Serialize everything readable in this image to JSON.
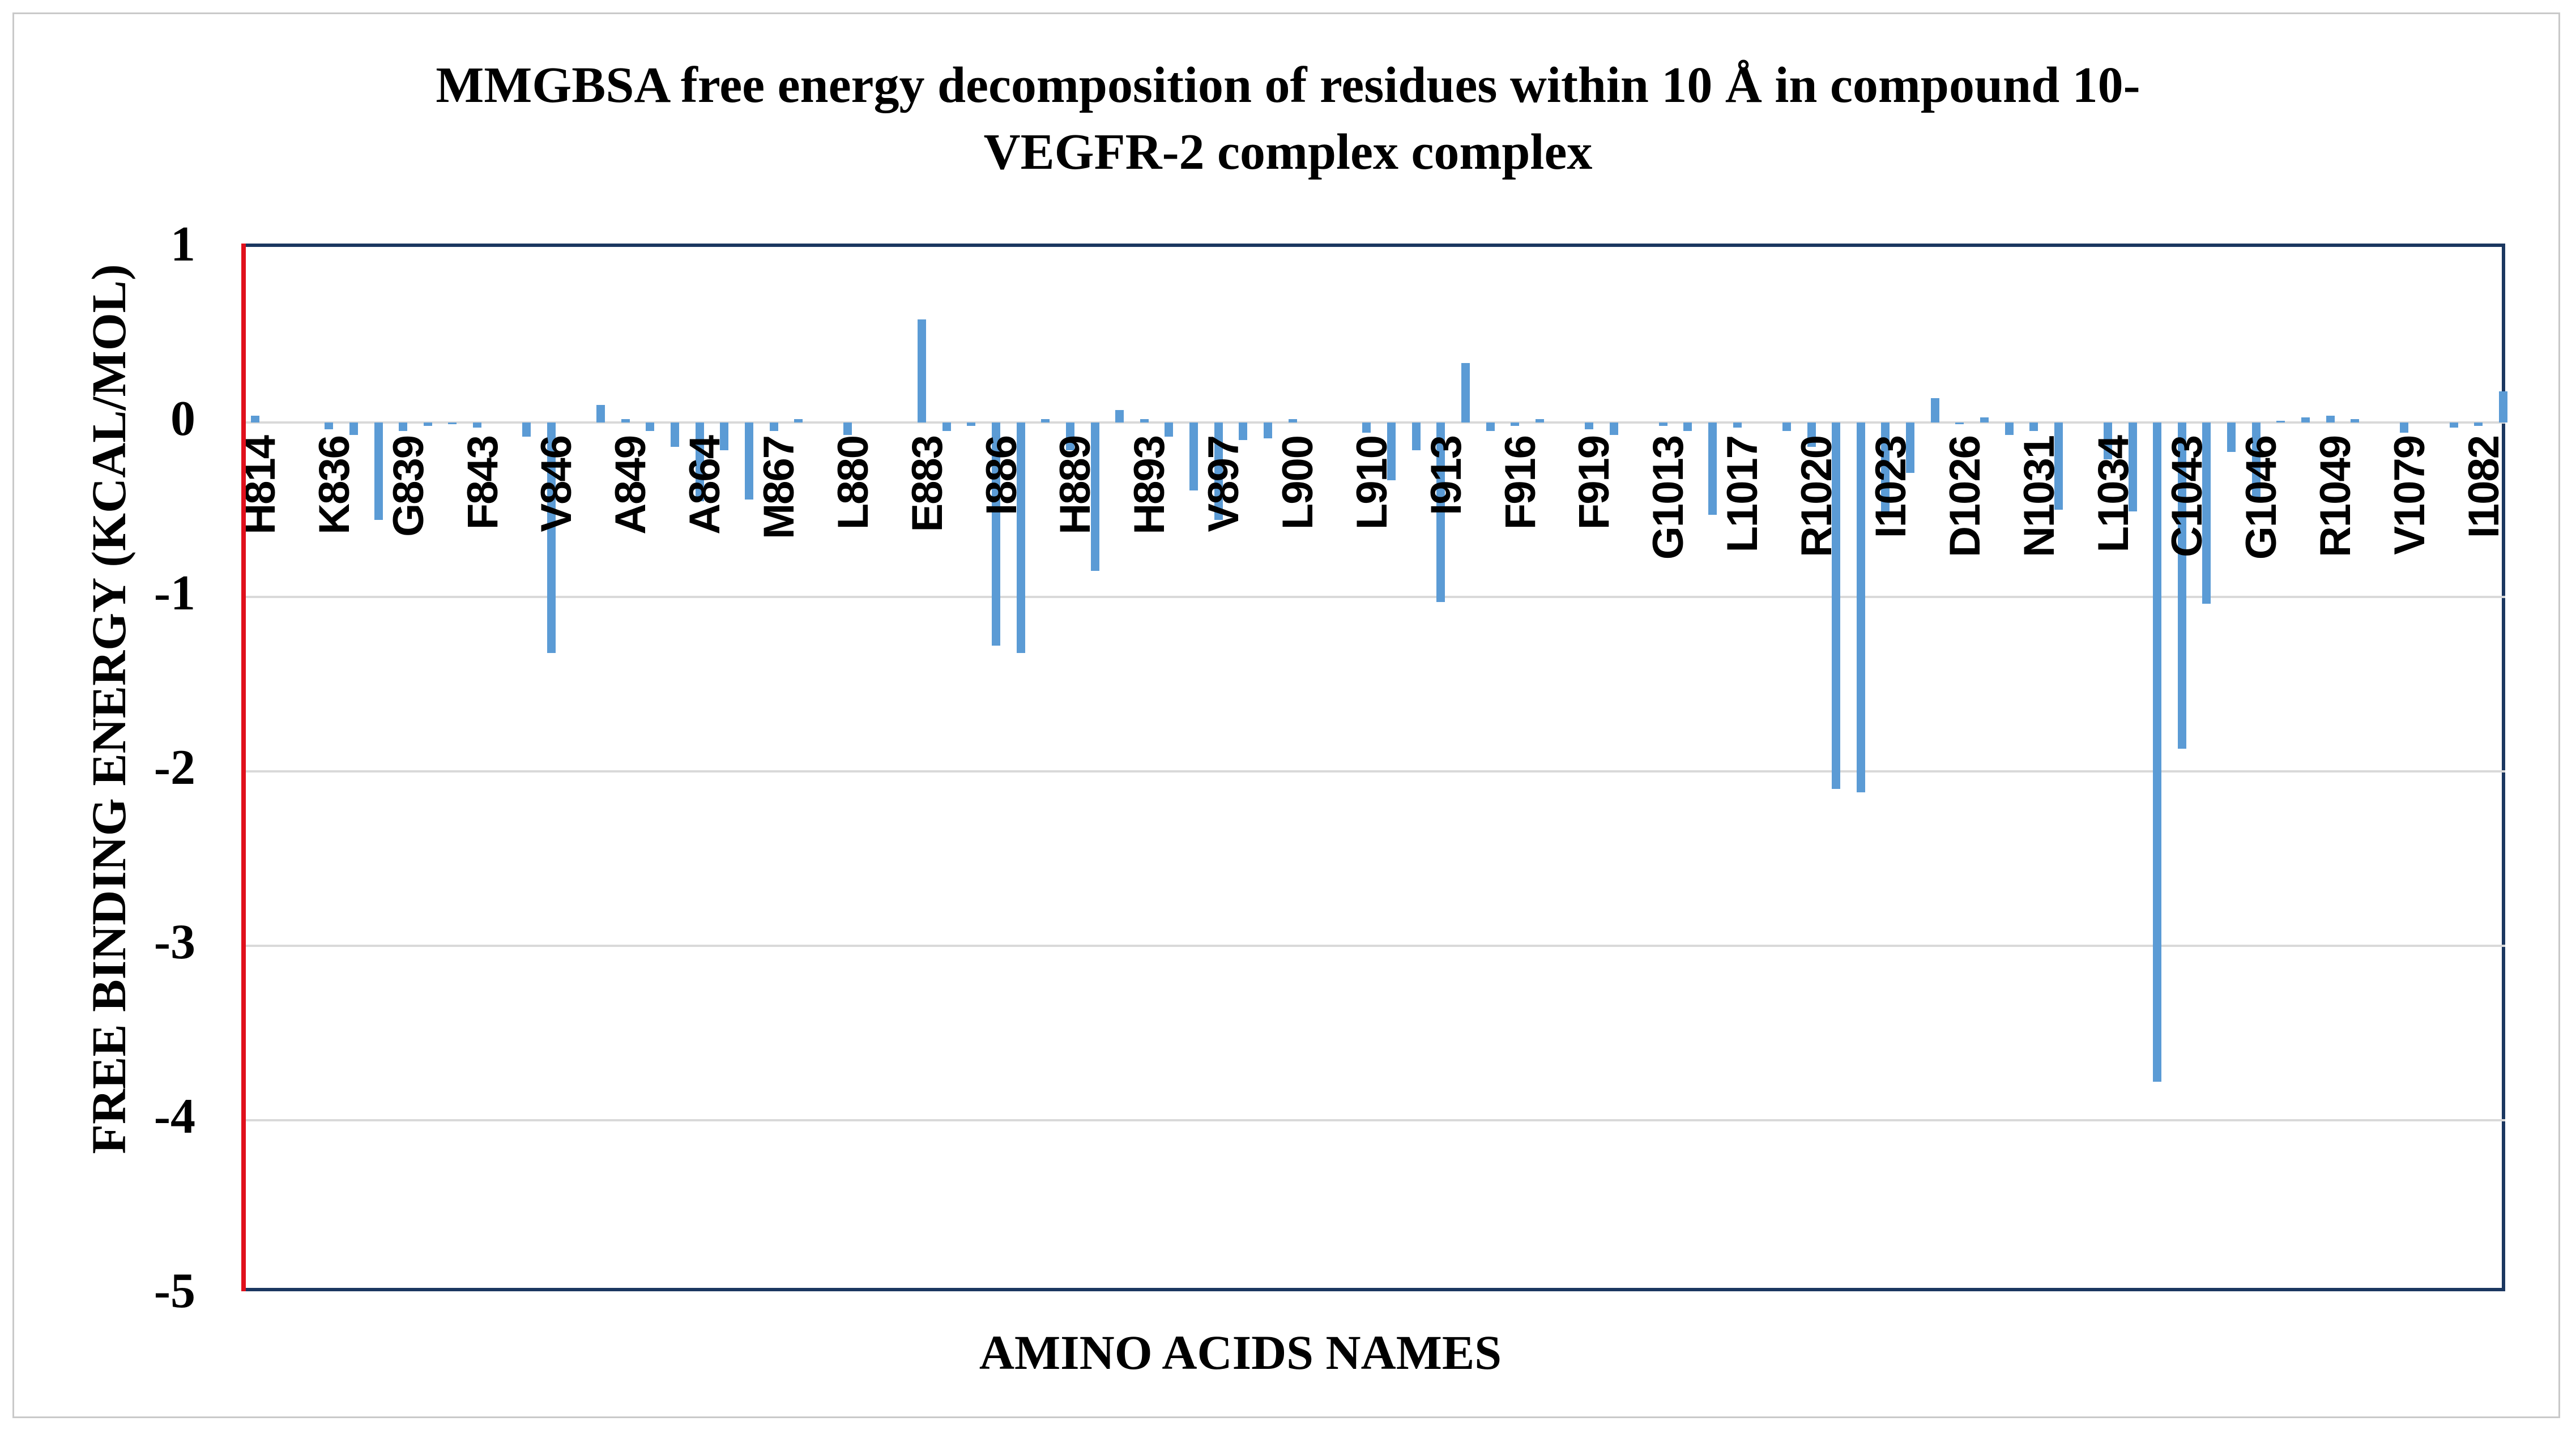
{
  "figure": {
    "background": "#ffffff",
    "border_color": "#c9c9c9"
  },
  "title": {
    "line1": "MMGBSA free energy decomposition of residues within 10 Å in compound 10-",
    "line2": "VEGFR-2 complex complex"
  },
  "chart_data": {
    "type": "bar",
    "title": "MMGBSA free energy decomposition of residues within 10 Å in compound 10-VEGFR-2 complex complex",
    "xlabel": "AMINO ACIDS NAMES",
    "ylabel": "FREE BINDING ENERGY (KCAL/MOL)",
    "ylim": [
      -5,
      1
    ],
    "ytick_labels": [
      "1",
      "0",
      "-1",
      "-2",
      "-3",
      "-4",
      "-5"
    ],
    "ytick_values": [
      1,
      0,
      -1,
      -2,
      -3,
      -4,
      -5
    ],
    "grid": true,
    "legend": "none",
    "bar_color": "#5b9bd5",
    "gridline_color": "#d9d9d9",
    "plot_border_color": "#1b3760",
    "y_axis_line_color": "#e0101c",
    "label_every": 3,
    "labels": [
      "H814",
      "K836",
      "G839",
      "F843",
      "V846",
      "A849",
      "A864",
      "M867",
      "L880",
      "E883",
      "I886",
      "H889",
      "H893",
      "V897",
      "L900",
      "L910",
      "I913",
      "F916",
      "F919",
      "G1013",
      "L1017",
      "R1020",
      "I1023",
      "D1026",
      "N1031",
      "L1034",
      "C1043",
      "G1046",
      "R1049",
      "V1079",
      "I1082"
    ],
    "values": [
      0.04,
      0.0,
      0.0,
      -0.04,
      -0.07,
      -0.56,
      -0.05,
      -0.02,
      -0.01,
      -0.03,
      0.0,
      -0.08,
      -1.32,
      0.0,
      0.1,
      0.02,
      -0.05,
      -0.14,
      -0.45,
      -0.16,
      -0.44,
      -0.05,
      0.02,
      0.0,
      -0.07,
      0.0,
      0.0,
      0.59,
      -0.05,
      -0.02,
      -1.28,
      -1.32,
      0.02,
      -0.16,
      -0.85,
      0.07,
      0.02,
      -0.08,
      -0.39,
      -0.56,
      -0.1,
      -0.09,
      0.02,
      0.0,
      0.0,
      -0.06,
      -0.33,
      -0.16,
      -1.03,
      0.34,
      -0.05,
      -0.02,
      0.02,
      0.0,
      -0.04,
      -0.07,
      0.0,
      -0.02,
      -0.05,
      -0.53,
      -0.03,
      0.0,
      -0.05,
      -0.14,
      -2.1,
      -2.12,
      -0.52,
      -0.29,
      0.14,
      -0.01,
      0.03,
      -0.07,
      -0.05,
      -0.5,
      0.0,
      -0.21,
      -0.51,
      -3.78,
      -1.87,
      -1.04,
      -0.17,
      -0.45,
      0.01,
      0.03,
      0.04,
      0.02,
      0.0,
      -0.06,
      0.0,
      -0.03,
      -0.02,
      0.18
    ]
  }
}
